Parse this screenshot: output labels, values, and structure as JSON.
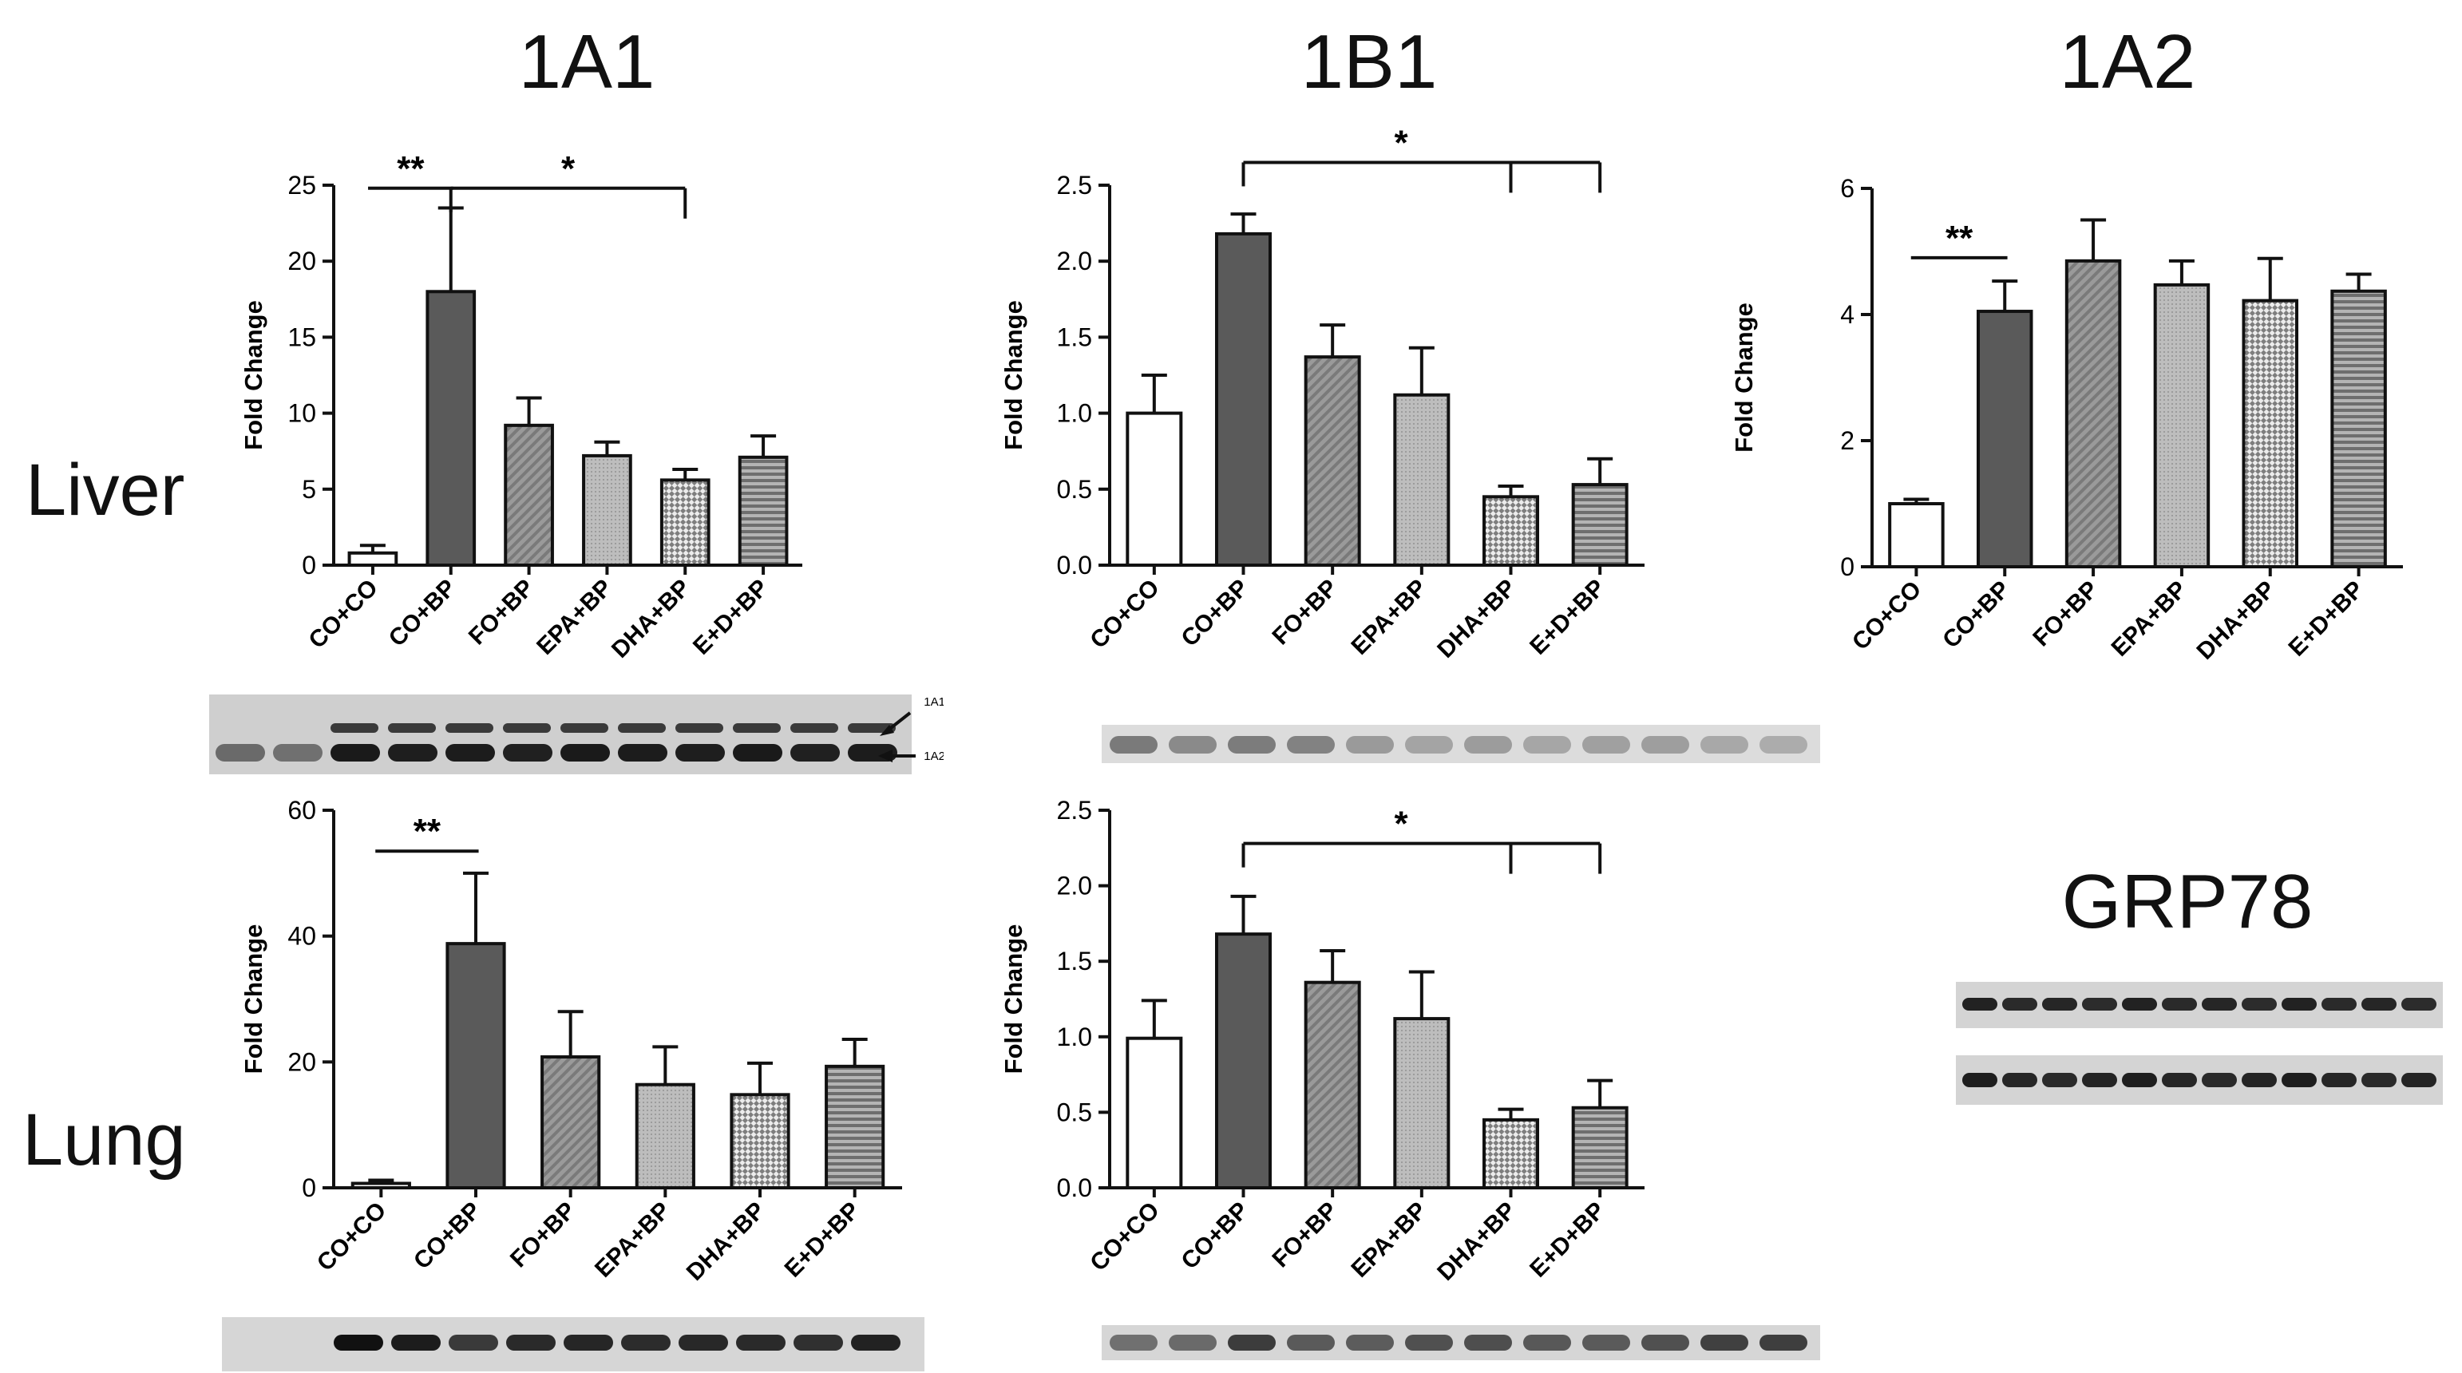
{
  "figure": {
    "column_titles": [
      "1A1",
      "1B1",
      "1A2"
    ],
    "row_labels": [
      "Liver",
      "Lung"
    ],
    "grp_title": "GRP78",
    "blot_markers": [
      "1A1",
      "1A2"
    ]
  },
  "colors": {
    "co_co": "#ffffff",
    "co_bp": "#5a5a5a",
    "fo_bp": "#7a7a7a",
    "epa_bp": "#bdbdbd",
    "dha_bp": "#d0d0d0",
    "ed_bp": "#8a8a8a",
    "axis": "#111111"
  },
  "chart_data": [
    {
      "id": "liver-1a1",
      "type": "bar",
      "title": "1A1",
      "row": "Liver",
      "categories": [
        "CO+CO",
        "CO+BP",
        "FO+BP",
        "EPA+BP",
        "DHA+BP",
        "E+D+BP"
      ],
      "values": [
        0.8,
        18.0,
        9.2,
        7.2,
        5.6,
        7.1
      ],
      "errors": [
        0.5,
        5.5,
        1.8,
        0.9,
        0.7,
        1.4
      ],
      "ylabel": "Fold Change",
      "xlabel": "",
      "ylim": [
        0,
        25
      ],
      "yticks": [
        0,
        5,
        10,
        15,
        20,
        25
      ],
      "ytick_labels": [
        "0",
        "5",
        "10",
        "15",
        "20",
        "25"
      ],
      "significance": [
        {
          "label": "**",
          "type": "line",
          "from": 0,
          "to": 1,
          "y": 24.8
        },
        {
          "label": "*",
          "type": "bracket",
          "from": 1,
          "to": 4,
          "y": 24.8,
          "drops": [
            4
          ]
        }
      ]
    },
    {
      "id": "liver-1b1",
      "type": "bar",
      "title": "1B1",
      "row": "Liver",
      "categories": [
        "CO+CO",
        "CO+BP",
        "FO+BP",
        "EPA+BP",
        "DHA+BP",
        "E+D+BP"
      ],
      "values": [
        1.0,
        2.18,
        1.37,
        1.12,
        0.45,
        0.53
      ],
      "errors": [
        0.25,
        0.13,
        0.21,
        0.31,
        0.07,
        0.17
      ],
      "ylabel": "Fold Change",
      "xlabel": "",
      "ylim": [
        0,
        2.5
      ],
      "yticks": [
        0,
        0.5,
        1,
        1.5,
        2,
        2.5
      ],
      "ytick_labels": [
        "0.0",
        "0.5",
        "1.0",
        "1.5",
        "2.0",
        "2.5"
      ],
      "significance": [
        {
          "label": "*",
          "type": "bracket",
          "from": 1,
          "to": 5,
          "y": 2.65,
          "drops": [
            4,
            5
          ]
        }
      ]
    },
    {
      "id": "liver-1a2",
      "type": "bar",
      "title": "1A2",
      "row": "Liver",
      "categories": [
        "CO+CO",
        "CO+BP",
        "FO+BP",
        "EPA+BP",
        "DHA+BP",
        "E+D+BP"
      ],
      "values": [
        1.0,
        4.05,
        4.85,
        4.47,
        4.22,
        4.37
      ],
      "errors": [
        0.07,
        0.48,
        0.65,
        0.38,
        0.67,
        0.27
      ],
      "ylabel": "Fold Change",
      "xlabel": "",
      "ylim": [
        0,
        6
      ],
      "yticks": [
        0,
        2,
        4,
        6
      ],
      "ytick_labels": [
        "0",
        "2",
        "4",
        "6"
      ],
      "significance": [
        {
          "label": "**",
          "type": "line",
          "from": 0,
          "to": 1,
          "y": 4.9
        }
      ]
    },
    {
      "id": "lung-1a1",
      "type": "bar",
      "title": "1A1",
      "row": "Lung",
      "categories": [
        "CO+CO",
        "CO+BP",
        "FO+BP",
        "EPA+BP",
        "DHA+BP",
        "E+D+BP"
      ],
      "values": [
        0.7,
        38.8,
        20.8,
        16.4,
        14.8,
        19.3
      ],
      "errors": [
        0.5,
        11.2,
        7.2,
        6.0,
        5.0,
        4.3
      ],
      "ylabel": "Fold Change",
      "xlabel": "",
      "ylim": [
        0,
        60
      ],
      "yticks": [
        0,
        20,
        40,
        60
      ],
      "ytick_labels": [
        "0",
        "20",
        "40",
        "60"
      ],
      "significance": [
        {
          "label": "**",
          "type": "line",
          "from": 0,
          "to": 1,
          "y": 53.5
        }
      ]
    },
    {
      "id": "lung-1b1",
      "type": "bar",
      "title": "1B1",
      "row": "Lung",
      "categories": [
        "CO+CO",
        "CO+BP",
        "FO+BP",
        "EPA+BP",
        "DHA+BP",
        "E+D+BP"
      ],
      "values": [
        0.99,
        1.68,
        1.36,
        1.12,
        0.45,
        0.53
      ],
      "errors": [
        0.25,
        0.25,
        0.21,
        0.31,
        0.07,
        0.18
      ],
      "ylabel": "Fold Change",
      "xlabel": "",
      "ylim": [
        0,
        2.5
      ],
      "yticks": [
        0,
        0.5,
        1,
        1.5,
        2,
        2.5
      ],
      "ytick_labels": [
        "0.0",
        "0.5",
        "1.0",
        "1.5",
        "2.0",
        "2.5"
      ],
      "significance": [
        {
          "label": "*",
          "type": "bracket",
          "from": 1,
          "to": 5,
          "y": 2.28,
          "drops": [
            4,
            5
          ]
        }
      ]
    }
  ]
}
